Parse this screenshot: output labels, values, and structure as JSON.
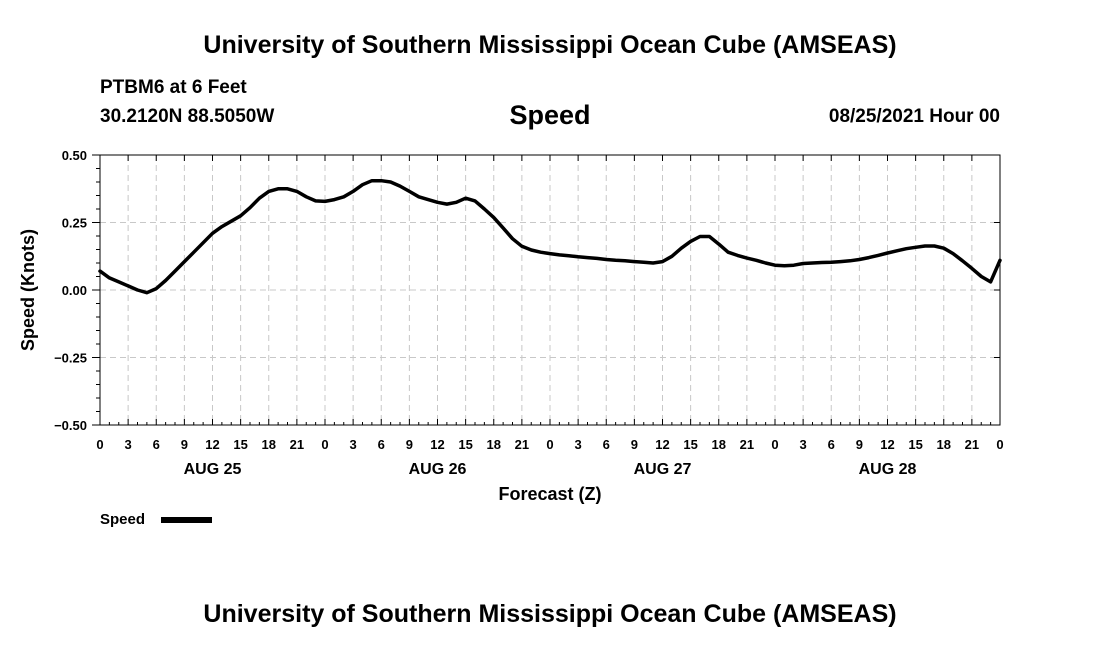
{
  "page": {
    "title_top": "University of Southern Mississippi Ocean Cube (AMSEAS)",
    "title_bottom": "University of Southern Mississippi Ocean Cube (AMSEAS)",
    "station": "PTBM6 at 6 Feet",
    "coords": "30.2120N  88.5050W",
    "variable": "Speed",
    "datetime": "08/25/2021 Hour 00"
  },
  "chart_data": {
    "type": "line",
    "title": "Speed",
    "xlabel": "Forecast (Z)",
    "ylabel": "Speed (Knots)",
    "ylim": [
      -0.5,
      0.5
    ],
    "xlim": [
      0,
      96
    ],
    "yticks": [
      "0.50",
      "0.25",
      "0.00",
      "−0.25",
      "−0.50"
    ],
    "ytick_values": [
      0.5,
      0.25,
      0.0,
      -0.25,
      -0.5
    ],
    "xticks": [
      "0",
      "3",
      "6",
      "9",
      "12",
      "15",
      "18",
      "21",
      "0",
      "3",
      "6",
      "9",
      "12",
      "15",
      "18",
      "21",
      "0",
      "3",
      "6",
      "9",
      "12",
      "15",
      "18",
      "21",
      "0",
      "3",
      "6",
      "9",
      "12",
      "15",
      "18",
      "21",
      "0"
    ],
    "day_labels": [
      {
        "label": "AUG 25",
        "hour": 12
      },
      {
        "label": "AUG 26",
        "hour": 36
      },
      {
        "label": "AUG 27",
        "hour": 60
      },
      {
        "label": "AUG 28",
        "hour": 84
      }
    ],
    "grid": true,
    "legend": [
      {
        "name": "Speed",
        "position": "bottom-left"
      }
    ],
    "series": [
      {
        "name": "Speed",
        "color": "#000000",
        "x": [
          0,
          1,
          2,
          3,
          4,
          5,
          6,
          7,
          8,
          9,
          10,
          11,
          12,
          13,
          14,
          15,
          16,
          17,
          18,
          19,
          20,
          21,
          22,
          23,
          24,
          25,
          26,
          27,
          28,
          29,
          30,
          31,
          32,
          33,
          34,
          35,
          36,
          37,
          38,
          39,
          40,
          41,
          42,
          43,
          44,
          45,
          46,
          47,
          48,
          49,
          50,
          51,
          52,
          53,
          54,
          55,
          56,
          57,
          58,
          59,
          60,
          61,
          62,
          63,
          64,
          65,
          66,
          67,
          68,
          69,
          70,
          71,
          72,
          73,
          74,
          75,
          76,
          77,
          78,
          79,
          80,
          81,
          82,
          83,
          84,
          85,
          86,
          87,
          88,
          89,
          90,
          91,
          92,
          93,
          94,
          95,
          96
        ],
        "values": [
          0.07,
          0.045,
          0.03,
          0.015,
          0.0,
          -0.01,
          0.005,
          0.035,
          0.07,
          0.105,
          0.14,
          0.175,
          0.21,
          0.235,
          0.255,
          0.275,
          0.305,
          0.34,
          0.365,
          0.375,
          0.375,
          0.365,
          0.345,
          0.33,
          0.328,
          0.335,
          0.345,
          0.365,
          0.39,
          0.405,
          0.405,
          0.4,
          0.385,
          0.365,
          0.345,
          0.335,
          0.325,
          0.318,
          0.325,
          0.34,
          0.33,
          0.3,
          0.268,
          0.23,
          0.19,
          0.162,
          0.148,
          0.14,
          0.135,
          0.13,
          0.127,
          0.123,
          0.12,
          0.117,
          0.113,
          0.11,
          0.108,
          0.105,
          0.103,
          0.1,
          0.105,
          0.125,
          0.155,
          0.18,
          0.198,
          0.198,
          0.17,
          0.14,
          0.128,
          0.118,
          0.11,
          0.1,
          0.092,
          0.09,
          0.092,
          0.098,
          0.1,
          0.102,
          0.103,
          0.105,
          0.108,
          0.113,
          0.12,
          0.128,
          0.137,
          0.145,
          0.153,
          0.158,
          0.163,
          0.163,
          0.155,
          0.135,
          0.108,
          0.08,
          0.05,
          0.03,
          0.11
        ]
      }
    ]
  }
}
